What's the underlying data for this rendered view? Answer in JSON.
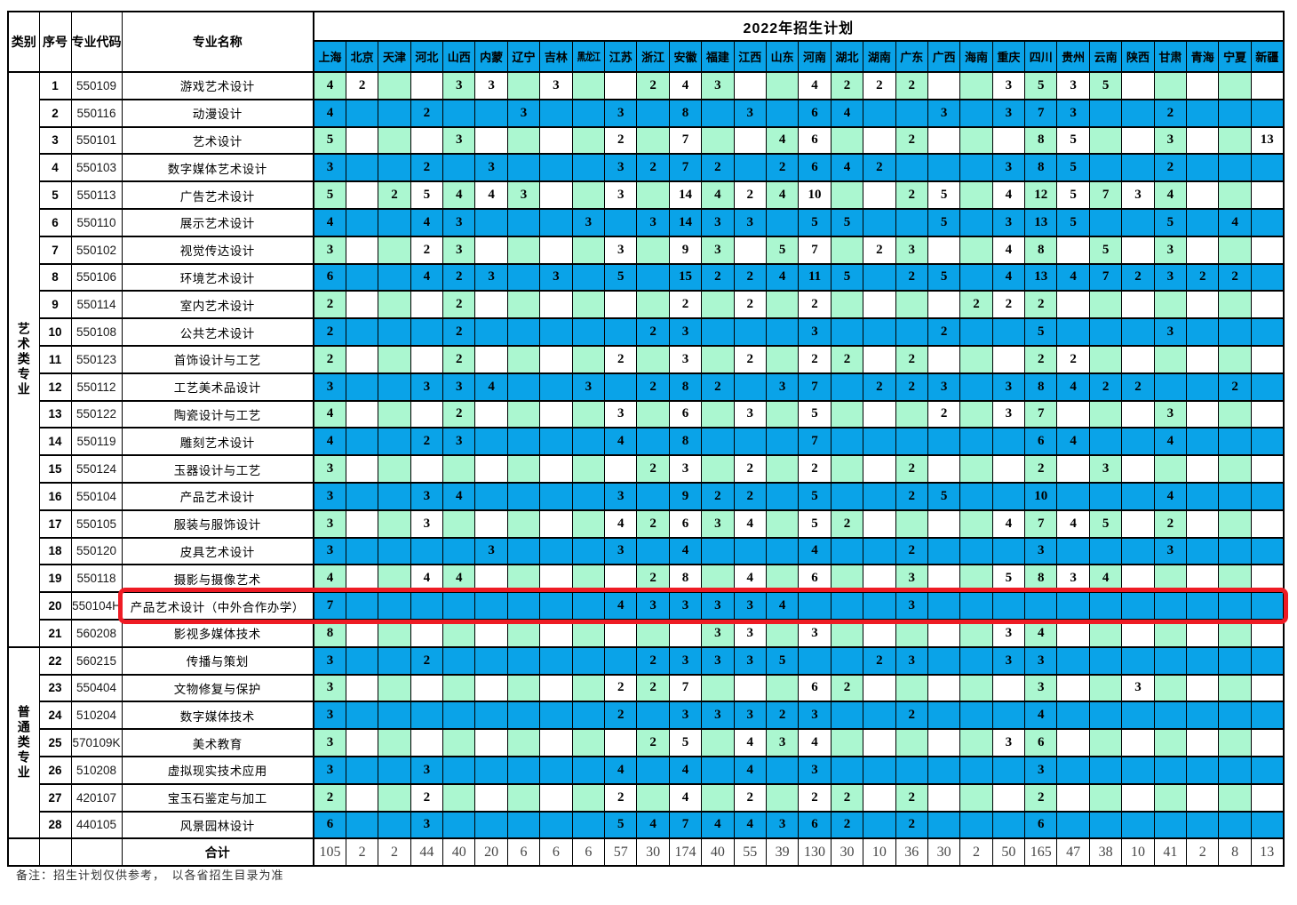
{
  "title": "2022年招生计划",
  "header": {
    "category": "类别",
    "serial": "序号",
    "major_code": "专业代码",
    "major_name": "专业名称",
    "total_label": "合计"
  },
  "provinces": [
    "上海",
    "北京",
    "天津",
    "河北",
    "山西",
    "内蒙",
    "辽宁",
    "吉林",
    "黑龙江",
    "江苏",
    "浙江",
    "安徽",
    "福建",
    "江西",
    "山东",
    "河南",
    "湖北",
    "湖南",
    "广东",
    "广西",
    "海南",
    "重庆",
    "四川",
    "贵州",
    "云南",
    "陕西",
    "甘肃",
    "青海",
    "宁夏",
    "新疆"
  ],
  "groups": [
    {
      "label": "艺术类专业",
      "row_count": 21
    },
    {
      "label": "普通类专业",
      "row_count": 7
    }
  ],
  "rows": [
    {
      "no": "1",
      "code": "550109",
      "name": "游戏艺术设计",
      "values": [
        "4",
        "2",
        "",
        "",
        "3",
        "3",
        "",
        "3",
        "",
        "",
        "2",
        "4",
        "3",
        "",
        "",
        "4",
        "2",
        "2",
        "2",
        "",
        "",
        "3",
        "5",
        "3",
        "5",
        "",
        "",
        "",
        "",
        ""
      ]
    },
    {
      "no": "2",
      "code": "550116",
      "name": "动漫设计",
      "values": [
        "4",
        "",
        "",
        "2",
        "",
        "",
        "3",
        "",
        "",
        "3",
        "",
        "8",
        "",
        "3",
        "",
        "6",
        "4",
        "",
        "",
        "3",
        "",
        "3",
        "7",
        "3",
        "",
        "",
        "2",
        "",
        "",
        ""
      ]
    },
    {
      "no": "3",
      "code": "550101",
      "name": "艺术设计",
      "values": [
        "5",
        "",
        "",
        "",
        "3",
        "",
        "",
        "",
        "",
        "2",
        "",
        "7",
        "",
        "",
        "4",
        "6",
        "",
        "",
        "2",
        "",
        "",
        "",
        "8",
        "5",
        "",
        "",
        "3",
        "",
        "",
        "13"
      ]
    },
    {
      "no": "4",
      "code": "550103",
      "name": "数字媒体艺术设计",
      "values": [
        "3",
        "",
        "",
        "2",
        "",
        "3",
        "",
        "",
        "",
        "3",
        "2",
        "7",
        "2",
        "",
        "2",
        "6",
        "4",
        "2",
        "",
        "",
        "",
        "3",
        "8",
        "5",
        "",
        "",
        "2",
        "",
        "",
        ""
      ]
    },
    {
      "no": "5",
      "code": "550113",
      "name": "广告艺术设计",
      "values": [
        "5",
        "",
        "2",
        "5",
        "4",
        "4",
        "3",
        "",
        "",
        "3",
        "",
        "14",
        "4",
        "2",
        "4",
        "10",
        "",
        "",
        "2",
        "5",
        "",
        "4",
        "12",
        "5",
        "7",
        "3",
        "4",
        "",
        "",
        ""
      ]
    },
    {
      "no": "6",
      "code": "550110",
      "name": "展示艺术设计",
      "values": [
        "4",
        "",
        "",
        "4",
        "3",
        "",
        "",
        "",
        "3",
        "",
        "3",
        "14",
        "3",
        "3",
        "",
        "5",
        "5",
        "",
        "",
        "5",
        "",
        "3",
        "13",
        "5",
        "",
        "",
        "5",
        "",
        "4",
        ""
      ]
    },
    {
      "no": "7",
      "code": "550102",
      "name": "视觉传达设计",
      "values": [
        "3",
        "",
        "",
        "2",
        "3",
        "",
        "",
        "",
        "",
        "3",
        "",
        "9",
        "3",
        "",
        "5",
        "7",
        "",
        "2",
        "3",
        "",
        "",
        "4",
        "8",
        "",
        "5",
        "",
        "3",
        "",
        "",
        ""
      ]
    },
    {
      "no": "8",
      "code": "550106",
      "name": "环境艺术设计",
      "values": [
        "6",
        "",
        "",
        "4",
        "2",
        "3",
        "",
        "3",
        "",
        "5",
        "",
        "15",
        "2",
        "2",
        "4",
        "11",
        "5",
        "",
        "2",
        "5",
        "",
        "4",
        "13",
        "4",
        "7",
        "2",
        "3",
        "2",
        "2",
        ""
      ]
    },
    {
      "no": "9",
      "code": "550114",
      "name": "室内艺术设计",
      "values": [
        "2",
        "",
        "",
        "",
        "2",
        "",
        "",
        "",
        "",
        "",
        "",
        "2",
        "",
        "2",
        "",
        "2",
        "",
        "",
        "",
        "",
        "2",
        "2",
        "2",
        "",
        "",
        "",
        "",
        "",
        "",
        ""
      ]
    },
    {
      "no": "10",
      "code": "550108",
      "name": "公共艺术设计",
      "values": [
        "2",
        "",
        "",
        "",
        "2",
        "",
        "",
        "",
        "",
        "",
        "2",
        "3",
        "",
        "",
        "",
        "3",
        "",
        "",
        "",
        "2",
        "",
        "",
        "5",
        "",
        "",
        "",
        "3",
        "",
        "",
        ""
      ]
    },
    {
      "no": "11",
      "code": "550123",
      "name": "首饰设计与工艺",
      "values": [
        "2",
        "",
        "",
        "",
        "2",
        "",
        "",
        "",
        "",
        "2",
        "",
        "3",
        "",
        "2",
        "",
        "2",
        "2",
        "",
        "2",
        "",
        "",
        "",
        "2",
        "2",
        "",
        "",
        "",
        "",
        "",
        ""
      ]
    },
    {
      "no": "12",
      "code": "550112",
      "name": "工艺美术品设计",
      "values": [
        "3",
        "",
        "",
        "3",
        "3",
        "4",
        "",
        "",
        "3",
        "",
        "2",
        "8",
        "2",
        "",
        "3",
        "7",
        "",
        "2",
        "2",
        "3",
        "",
        "3",
        "8",
        "4",
        "2",
        "2",
        "",
        "",
        "2",
        ""
      ]
    },
    {
      "no": "13",
      "code": "550122",
      "name": "陶瓷设计与工艺",
      "values": [
        "4",
        "",
        "",
        "",
        "2",
        "",
        "",
        "",
        "",
        "3",
        "",
        "6",
        "",
        "3",
        "",
        "5",
        "",
        "",
        "",
        "2",
        "",
        "3",
        "7",
        "",
        "",
        "",
        "3",
        "",
        "",
        ""
      ]
    },
    {
      "no": "14",
      "code": "550119",
      "name": "雕刻艺术设计",
      "values": [
        "4",
        "",
        "",
        "2",
        "3",
        "",
        "",
        "",
        "",
        "4",
        "",
        "8",
        "",
        "",
        "",
        "7",
        "",
        "",
        "",
        "",
        "",
        "",
        "6",
        "4",
        "",
        "",
        "4",
        "",
        "",
        ""
      ]
    },
    {
      "no": "15",
      "code": "550124",
      "name": "玉器设计与工艺",
      "values": [
        "3",
        "",
        "",
        "",
        "",
        "",
        "",
        "",
        "",
        "",
        "2",
        "3",
        "",
        "2",
        "",
        "2",
        "",
        "",
        "2",
        "",
        "",
        "",
        "2",
        "",
        "3",
        "",
        "",
        "",
        "",
        ""
      ]
    },
    {
      "no": "16",
      "code": "550104",
      "name": "产品艺术设计",
      "values": [
        "3",
        "",
        "",
        "3",
        "4",
        "",
        "",
        "",
        "",
        "3",
        "",
        "9",
        "2",
        "2",
        "",
        "5",
        "",
        "",
        "2",
        "5",
        "",
        "",
        "10",
        "",
        "",
        "",
        "4",
        "",
        "",
        ""
      ]
    },
    {
      "no": "17",
      "code": "550105",
      "name": "服装与服饰设计",
      "values": [
        "3",
        "",
        "",
        "3",
        "",
        "",
        "",
        "",
        "",
        "4",
        "2",
        "6",
        "3",
        "4",
        "",
        "5",
        "2",
        "",
        "",
        "",
        "",
        "4",
        "7",
        "4",
        "5",
        "",
        "2",
        "",
        "",
        ""
      ]
    },
    {
      "no": "18",
      "code": "550120",
      "name": "皮具艺术设计",
      "values": [
        "3",
        "",
        "",
        "",
        "",
        "3",
        "",
        "",
        "",
        "3",
        "",
        "4",
        "",
        "",
        "",
        "4",
        "",
        "",
        "2",
        "",
        "",
        "",
        "3",
        "",
        "",
        "",
        "3",
        "",
        "",
        ""
      ]
    },
    {
      "no": "19",
      "code": "550118",
      "name": "摄影与摄像艺术",
      "values": [
        "4",
        "",
        "",
        "4",
        "4",
        "",
        "",
        "",
        "",
        "",
        "2",
        "8",
        "",
        "4",
        "",
        "6",
        "",
        "",
        "3",
        "",
        "",
        "5",
        "8",
        "3",
        "4",
        "",
        "",
        "",
        "",
        ""
      ]
    },
    {
      "no": "20",
      "code": "550104H",
      "name": "产品艺术设计（中外合作办学）",
      "highlighted": true,
      "values": [
        "7",
        "",
        "",
        "",
        "",
        "",
        "",
        "",
        "",
        "4",
        "3",
        "3",
        "3",
        "3",
        "4",
        "",
        "",
        "",
        "3",
        "",
        "",
        "",
        "",
        "",
        "",
        "",
        "",
        "",
        "",
        ""
      ]
    },
    {
      "no": "21",
      "code": "560208",
      "name": "影视多媒体技术",
      "values": [
        "8",
        "",
        "",
        "",
        "",
        "",
        "",
        "",
        "",
        "",
        "",
        "",
        "3",
        "3",
        "",
        "3",
        "",
        "",
        "",
        "",
        "",
        "3",
        "4",
        "",
        "",
        "",
        "",
        "",
        "",
        ""
      ]
    },
    {
      "no": "22",
      "code": "560215",
      "name": "传播与策划",
      "values": [
        "3",
        "",
        "",
        "2",
        "",
        "",
        "",
        "",
        "",
        "",
        "2",
        "3",
        "3",
        "3",
        "5",
        "",
        "",
        "2",
        "3",
        "",
        "",
        "3",
        "3",
        "",
        "",
        "",
        "",
        "",
        "",
        ""
      ]
    },
    {
      "no": "23",
      "code": "550404",
      "name": "文物修复与保护",
      "values": [
        "3",
        "",
        "",
        "",
        "",
        "",
        "",
        "",
        "",
        "2",
        "2",
        "7",
        "",
        "",
        "",
        "6",
        "2",
        "",
        "",
        "",
        "",
        "",
        "3",
        "",
        "",
        "3",
        "",
        "",
        "",
        ""
      ]
    },
    {
      "no": "24",
      "code": "510204",
      "name": "数字媒体技术",
      "values": [
        "3",
        "",
        "",
        "",
        "",
        "",
        "",
        "",
        "",
        "2",
        "",
        "3",
        "3",
        "3",
        "2",
        "3",
        "",
        "",
        "2",
        "",
        "",
        "",
        "4",
        "",
        "",
        "",
        "",
        "",
        "",
        ""
      ]
    },
    {
      "no": "25",
      "code": "570109K",
      "name": "美术教育",
      "values": [
        "3",
        "",
        "",
        "",
        "",
        "",
        "",
        "",
        "",
        "",
        "2",
        "5",
        "",
        "4",
        "3",
        "4",
        "",
        "",
        "",
        "",
        "",
        "3",
        "6",
        "",
        "",
        "",
        "",
        "",
        "",
        ""
      ]
    },
    {
      "no": "26",
      "code": "510208",
      "name": "虚拟现实技术应用",
      "values": [
        "3",
        "",
        "",
        "3",
        "",
        "",
        "",
        "",
        "",
        "4",
        "",
        "4",
        "",
        "4",
        "",
        "3",
        "",
        "",
        "",
        "",
        "",
        "",
        "3",
        "",
        "",
        "",
        "",
        "",
        "",
        ""
      ]
    },
    {
      "no": "27",
      "code": "420107",
      "name": "宝玉石鉴定与加工",
      "values": [
        "2",
        "",
        "",
        "2",
        "",
        "",
        "",
        "",
        "",
        "2",
        "",
        "4",
        "",
        "2",
        "",
        "2",
        "2",
        "",
        "2",
        "",
        "",
        "",
        "2",
        "",
        "",
        "",
        "",
        "",
        "",
        ""
      ]
    },
    {
      "no": "28",
      "code": "440105",
      "name": "风景园林设计",
      "values": [
        "6",
        "",
        "",
        "3",
        "",
        "",
        "",
        "",
        "",
        "5",
        "4",
        "7",
        "4",
        "4",
        "3",
        "6",
        "2",
        "",
        "2",
        "",
        "",
        "",
        "6",
        "",
        "",
        "",
        "",
        "",
        "",
        ""
      ]
    }
  ],
  "totals": [
    "105",
    "2",
    "2",
    "44",
    "40",
    "20",
    "6",
    "6",
    "6",
    "57",
    "30",
    "174",
    "40",
    "55",
    "39",
    "130",
    "30",
    "10",
    "36",
    "30",
    "2",
    "50",
    "165",
    "47",
    "38",
    "10",
    "41",
    "2",
    "8",
    "13"
  ],
  "note": "备注：招生计划仅供参考，　以各省招生目录为准",
  "colors": {
    "cyan_row": "#0aa3e8",
    "mint_cell": "#abf7d0",
    "highlight_red": "#ee1b24",
    "grid_line": "#000000"
  }
}
